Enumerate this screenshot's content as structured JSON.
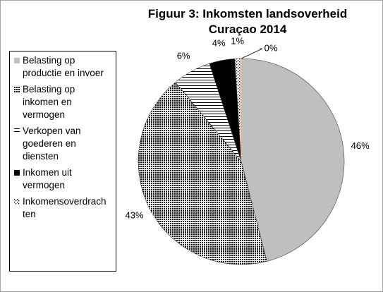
{
  "chart_data": {
    "type": "pie",
    "title": "Figuur 3: Inkomsten landsoverheid Curaçao 2014",
    "categories": [
      "Belasting op productie en invoer",
      "Belasting op inkomen en vermogen",
      "Verkopen van goederen en diensten",
      "Inkomen uit vermogen",
      "Inkomensoverdrachten",
      null
    ],
    "values": [
      46,
      43,
      6,
      4,
      1,
      0
    ],
    "value_labels": [
      "46%",
      "43%",
      "6%",
      "4%",
      "1%",
      "0%"
    ],
    "colors": [
      "#bfbfbf",
      "#000000",
      "#000000",
      "#000000",
      "#000000",
      "#f4b183"
    ]
  }
}
